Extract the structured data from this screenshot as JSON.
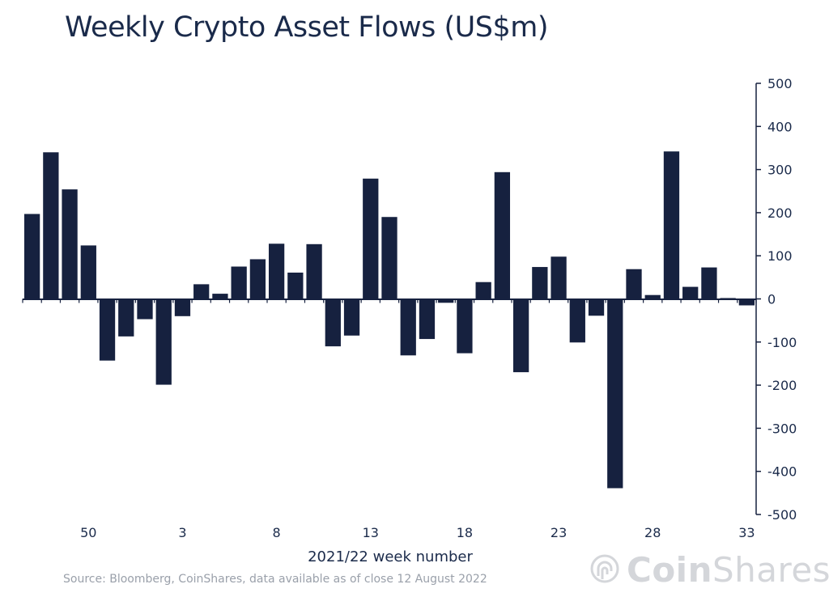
{
  "chart_data": {
    "type": "bar",
    "title": "Weekly Crypto Asset Flows (US$m)",
    "xlabel": "2021/22 week number",
    "ylabel": "",
    "ylim": [
      -500,
      500
    ],
    "yticks": [
      500,
      400,
      300,
      200,
      100,
      0,
      -100,
      -200,
      -300,
      -400,
      -500
    ],
    "categories": [
      "47",
      "48",
      "49",
      "50",
      "51",
      "52",
      "1",
      "2",
      "3",
      "4",
      "5",
      "6",
      "7",
      "8",
      "9",
      "10",
      "11",
      "12",
      "13",
      "14",
      "15",
      "16",
      "17",
      "18",
      "19",
      "20",
      "21",
      "22",
      "23",
      "24",
      "25",
      "26",
      "27",
      "28",
      "29",
      "30",
      "31",
      "32",
      "33"
    ],
    "xtick_labels": [
      "50",
      "3",
      "8",
      "13",
      "18",
      "23",
      "28",
      "33"
    ],
    "values": [
      197,
      340,
      254,
      124,
      -143,
      -87,
      -47,
      -199,
      -40,
      34,
      12,
      75,
      92,
      128,
      61,
      127,
      -110,
      -85,
      279,
      190,
      -131,
      -93,
      -9,
      -126,
      39,
      294,
      -170,
      74,
      98,
      -101,
      -39,
      -439,
      69,
      9,
      342,
      28,
      73,
      2,
      -15
    ],
    "color": "#16213f"
  },
  "source_note": "Source: Bloomberg, CoinShares, data available as of close 12 August 2022",
  "brand": {
    "name_bold": "Coin",
    "name_regular": "Shares",
    "icon": "coinshares-logo-icon"
  }
}
